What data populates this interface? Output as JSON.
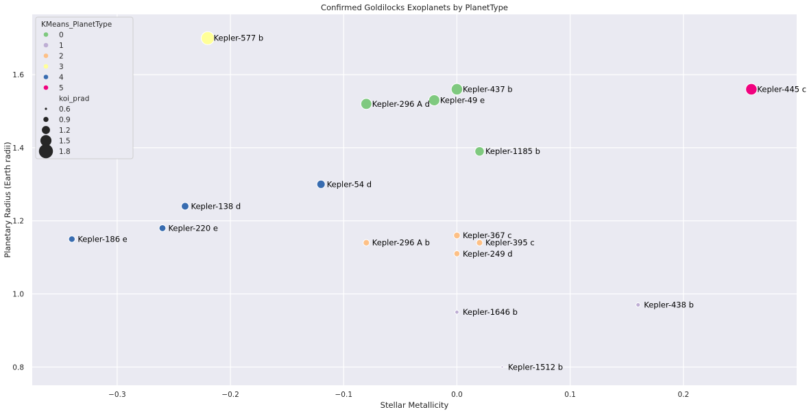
{
  "chart_data": {
    "type": "scatter",
    "title": "Confirmed Goldilocks Exoplanets by PlanetType",
    "xlabel": "Stellar Metallicity",
    "ylabel": "Planetary Radius (Earth radii)",
    "xlim": [
      -0.375,
      0.3
    ],
    "ylim": [
      0.75,
      1.765
    ],
    "xticks": [
      -0.3,
      -0.2,
      -0.1,
      0.0,
      0.1,
      0.2
    ],
    "xtick_labels": [
      "−0.3",
      "−0.2",
      "−0.1",
      "0.0",
      "0.1",
      "0.2"
    ],
    "yticks": [
      0.8,
      1.0,
      1.2,
      1.4,
      1.6
    ],
    "ytick_labels": [
      "0.8",
      "1.0",
      "1.2",
      "1.4",
      "1.6"
    ],
    "grid": true,
    "background": "#eaeaf2",
    "legend": {
      "placement": "top-left",
      "hue_title": "KMeans_PlanetType",
      "hue_entries": [
        {
          "label": "0",
          "color": "#7fc97f"
        },
        {
          "label": "1",
          "color": "#beaed4"
        },
        {
          "label": "2",
          "color": "#fdc086"
        },
        {
          "label": "3",
          "color": "#ffff99"
        },
        {
          "label": "4",
          "color": "#386cb0"
        },
        {
          "label": "5",
          "color": "#f0027f"
        }
      ],
      "size_title": "koi_prad",
      "size_entries": [
        {
          "label": "0.6",
          "value": 0.6
        },
        {
          "label": "0.9",
          "value": 0.9
        },
        {
          "label": "1.2",
          "value": 1.2
        },
        {
          "label": "1.5",
          "value": 1.5
        },
        {
          "label": "1.8",
          "value": 1.8
        }
      ]
    },
    "points": [
      {
        "name": "Kepler-577 b",
        "x": -0.22,
        "y": 1.7,
        "type": 3
      },
      {
        "name": "Kepler-437 b",
        "x": 0.0,
        "y": 1.56,
        "type": 0
      },
      {
        "name": "Kepler-445 c",
        "x": 0.26,
        "y": 1.56,
        "type": 5
      },
      {
        "name": "Kepler-49 e",
        "x": -0.02,
        "y": 1.53,
        "type": 0
      },
      {
        "name": "Kepler-296 A d",
        "x": -0.08,
        "y": 1.52,
        "type": 0
      },
      {
        "name": "Kepler-1185 b",
        "x": 0.02,
        "y": 1.39,
        "type": 0
      },
      {
        "name": "Kepler-54 d",
        "x": -0.12,
        "y": 1.3,
        "type": 4
      },
      {
        "name": "Kepler-138 d",
        "x": -0.24,
        "y": 1.24,
        "type": 4
      },
      {
        "name": "Kepler-220 e",
        "x": -0.26,
        "y": 1.18,
        "type": 4
      },
      {
        "name": "Kepler-186 e",
        "x": -0.34,
        "y": 1.15,
        "type": 4
      },
      {
        "name": "Kepler-367 c",
        "x": 0.0,
        "y": 1.16,
        "type": 2
      },
      {
        "name": "Kepler-395 c",
        "x": 0.02,
        "y": 1.14,
        "type": 2
      },
      {
        "name": "Kepler-296 A b",
        "x": -0.08,
        "y": 1.14,
        "type": 2
      },
      {
        "name": "Kepler-249 d",
        "x": 0.0,
        "y": 1.11,
        "type": 2
      },
      {
        "name": "Kepler-438 b",
        "x": 0.16,
        "y": 0.97,
        "type": 1
      },
      {
        "name": "Kepler-1646 b",
        "x": 0.0,
        "y": 0.95,
        "type": 1
      },
      {
        "name": "Kepler-1512 b",
        "x": 0.04,
        "y": 0.8,
        "type": 1
      }
    ]
  }
}
